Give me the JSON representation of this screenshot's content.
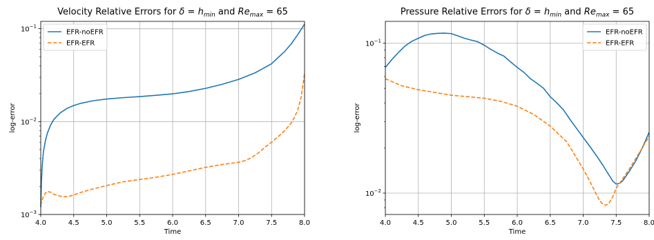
{
  "chart_data": [
    {
      "type": "line",
      "title": {
        "prefix": "Velocity Relative Errors for ",
        "delta": "δ",
        "eq1": " = ",
        "h": "h",
        "hsub": "min",
        "and": " and ",
        "Re": "Re",
        "resub": "max",
        "eq2": " = 65"
      },
      "xlabel": "Time",
      "ylabel": "log-error",
      "xlim": [
        4.0,
        8.0
      ],
      "ylim": [
        0.001,
        0.12
      ],
      "yscale": "log",
      "grid": true,
      "legend_position": "top-left",
      "xticks": [
        "4.0",
        "4.5",
        "5.0",
        "5.5",
        "6.0",
        "6.5",
        "7.0",
        "7.5",
        "8.0"
      ],
      "yticks": [
        {
          "value": 0.001,
          "base": "10",
          "exp": "−3"
        },
        {
          "value": 0.01,
          "base": "10",
          "exp": "−2"
        },
        {
          "value": 0.1,
          "base": "10",
          "exp": "−1"
        }
      ],
      "series": [
        {
          "name": "EFR-noEFR",
          "color": "#1f77b4",
          "dash": "solid",
          "x": [
            4.0,
            4.01,
            4.02,
            4.04,
            4.07,
            4.1,
            4.15,
            4.2,
            4.3,
            4.4,
            4.5,
            4.6,
            4.8,
            5.0,
            5.25,
            5.5,
            5.75,
            6.0,
            6.25,
            6.5,
            6.75,
            7.0,
            7.25,
            7.5,
            7.6,
            7.7,
            7.8,
            7.9,
            8.0
          ],
          "y": [
            0.0012,
            0.0022,
            0.0032,
            0.0047,
            0.0062,
            0.0075,
            0.0092,
            0.0106,
            0.0125,
            0.0139,
            0.0149,
            0.0157,
            0.0168,
            0.0175,
            0.0181,
            0.0186,
            0.0192,
            0.0199,
            0.0211,
            0.0228,
            0.0252,
            0.0285,
            0.0335,
            0.042,
            0.049,
            0.057,
            0.069,
            0.087,
            0.112
          ]
        },
        {
          "name": "EFR-EFR",
          "color": "#ff7f0e",
          "dash": "dashed",
          "x": [
            4.0,
            4.03,
            4.07,
            4.1,
            4.15,
            4.2,
            4.3,
            4.4,
            4.5,
            4.6,
            4.75,
            5.0,
            5.25,
            5.5,
            5.75,
            6.0,
            6.25,
            6.5,
            6.75,
            7.0,
            7.1,
            7.2,
            7.3,
            7.4,
            7.5,
            7.6,
            7.7,
            7.8,
            7.85,
            7.9,
            7.95,
            8.0
          ],
          "y": [
            0.00125,
            0.0015,
            0.0017,
            0.00177,
            0.00174,
            0.00165,
            0.00157,
            0.00155,
            0.00162,
            0.00172,
            0.00185,
            0.00205,
            0.00225,
            0.00238,
            0.00252,
            0.0027,
            0.00295,
            0.00322,
            0.00345,
            0.00365,
            0.0038,
            0.0041,
            0.0046,
            0.0053,
            0.006,
            0.0069,
            0.008,
            0.0097,
            0.0112,
            0.0136,
            0.0185,
            0.033
          ]
        }
      ]
    },
    {
      "type": "line",
      "title": {
        "prefix": "Pressure Relative Errors for ",
        "delta": "δ",
        "eq1": " = ",
        "h": "h",
        "hsub": "min",
        "and": " and ",
        "Re": "Re",
        "resub": "max",
        "eq2": " = 65"
      },
      "xlabel": "Time",
      "ylabel": "log-error",
      "xlim": [
        4.0,
        8.0
      ],
      "ylim": [
        0.0072,
        0.14
      ],
      "yscale": "log",
      "grid": true,
      "legend_position": "top-right",
      "xticks": [
        "4.0",
        "4.5",
        "5.0",
        "5.5",
        "6.0",
        "6.5",
        "7.0",
        "7.5",
        "8.0"
      ],
      "yticks": [
        {
          "value": 0.01,
          "base": "10",
          "exp": "−2"
        },
        {
          "value": 0.1,
          "base": "10",
          "exp": "−1"
        }
      ],
      "series": [
        {
          "name": "EFR-noEFR",
          "color": "#1f77b4",
          "dash": "solid",
          "x": [
            4.0,
            4.1,
            4.2,
            4.3,
            4.4,
            4.5,
            4.6,
            4.7,
            4.8,
            4.9,
            5.0,
            5.1,
            5.2,
            5.3,
            5.4,
            5.5,
            5.6,
            5.7,
            5.8,
            5.9,
            6.0,
            6.1,
            6.2,
            6.3,
            6.4,
            6.5,
            6.6,
            6.7,
            6.8,
            6.9,
            7.0,
            7.1,
            7.2,
            7.3,
            7.4,
            7.45,
            7.5,
            7.55,
            7.6,
            7.7,
            7.8,
            7.9,
            8.0
          ],
          "y": [
            0.069,
            0.078,
            0.087,
            0.096,
            0.103,
            0.108,
            0.113,
            0.1155,
            0.1165,
            0.1168,
            0.116,
            0.112,
            0.108,
            0.105,
            0.1025,
            0.097,
            0.091,
            0.086,
            0.082,
            0.075,
            0.069,
            0.064,
            0.058,
            0.054,
            0.05,
            0.044,
            0.04,
            0.036,
            0.031,
            0.027,
            0.0235,
            0.0205,
            0.0178,
            0.0153,
            0.013,
            0.012,
            0.0115,
            0.0116,
            0.0121,
            0.014,
            0.0165,
            0.0202,
            0.0255
          ]
        },
        {
          "name": "EFR-EFR",
          "color": "#ff7f0e",
          "dash": "dashed",
          "x": [
            4.0,
            4.25,
            4.5,
            4.75,
            5.0,
            5.25,
            5.5,
            5.75,
            6.0,
            6.25,
            6.5,
            6.75,
            7.0,
            7.1,
            7.2,
            7.25,
            7.3,
            7.35,
            7.4,
            7.45,
            7.5,
            7.6,
            7.7,
            7.8,
            7.9,
            8.0
          ],
          "y": [
            0.058,
            0.052,
            0.049,
            0.047,
            0.045,
            0.044,
            0.043,
            0.041,
            0.038,
            0.0335,
            0.028,
            0.022,
            0.0145,
            0.012,
            0.0098,
            0.0089,
            0.0084,
            0.0083,
            0.0087,
            0.0095,
            0.0108,
            0.0125,
            0.0145,
            0.0171,
            0.0202,
            0.024
          ]
        }
      ]
    }
  ]
}
